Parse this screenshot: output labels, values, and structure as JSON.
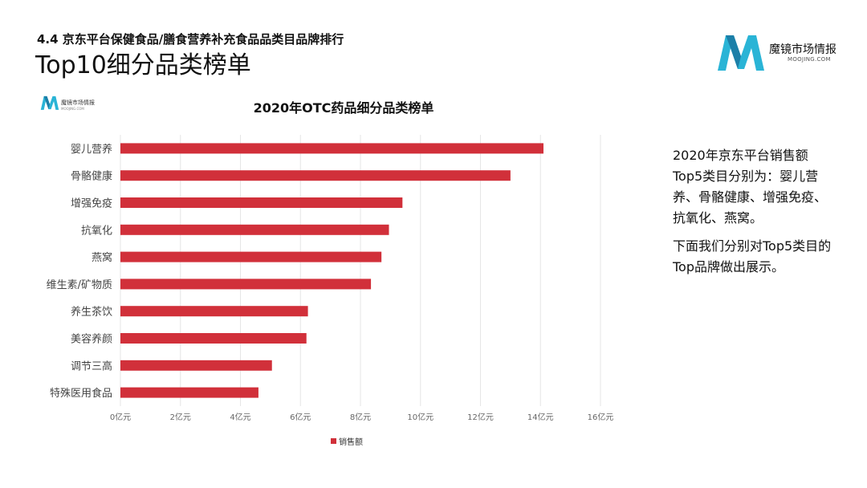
{
  "header": {
    "section_title": "4.4 京东平台保健食品/膳食营养补充食品品类目品牌排行",
    "page_title": "Top10细分品类榜单",
    "brand_name": "魔镜市场情报",
    "brand_domain": "MOOJING.COM"
  },
  "mini_brand": {
    "name": "魔镜市场情报",
    "domain": "MOOJING.COM"
  },
  "colors": {
    "bar": "#d1303a",
    "logo_accent": "#2ab4d6",
    "logo_dark": "#1c7fa8",
    "grid": "#e6e6e6"
  },
  "chart_data": {
    "type": "bar",
    "orientation": "horizontal",
    "title": "2020年OTC药品细分品类榜单",
    "categories": [
      "婴儿营养",
      "骨骼健康",
      "增强免疫",
      "抗氧化",
      "燕窝",
      "维生素/矿物质",
      "养生茶饮",
      "美容养颜",
      "调节三高",
      "特殊医用食品"
    ],
    "series": [
      {
        "name": "销售额",
        "values": [
          14.1,
          13.0,
          9.4,
          8.95,
          8.7,
          8.35,
          6.25,
          6.2,
          5.05,
          4.6
        ]
      }
    ],
    "xlim": [
      0,
      16
    ],
    "xticks": [
      "0亿元",
      "2亿元",
      "4亿元",
      "6亿元",
      "8亿元",
      "10亿元",
      "12亿元",
      "14亿元",
      "16亿元"
    ],
    "grid": true,
    "legend_position": "bottom"
  },
  "side_text": {
    "paragraph1": "2020年京东平台销售额Top5类目分别为：婴儿营养、骨骼健康、增强免疫、抗氧化、燕窝。",
    "paragraph2": "下面我们分别对Top5类目的Top品牌做出展示。"
  }
}
